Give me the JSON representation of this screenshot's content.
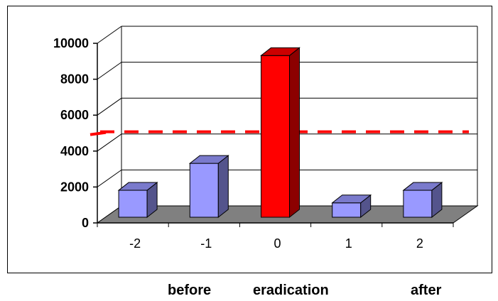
{
  "chart_data": {
    "type": "bar",
    "style": "3d",
    "categories": [
      "-2",
      "-1",
      "0",
      "1",
      "2"
    ],
    "values": [
      1500,
      3000,
      9000,
      800,
      1500
    ],
    "highlight_index": 2,
    "ylim": [
      0,
      10000
    ],
    "yticks": [
      "0",
      "2000",
      "4000",
      "6000",
      "8000",
      "10000"
    ],
    "ytick_values": [
      0,
      2000,
      4000,
      6000,
      8000,
      10000
    ],
    "grid": true,
    "threshold": 4600,
    "colors": {
      "bar": "#9999ff",
      "highlight": "#ff0000",
      "threshold_line": "#ff0000",
      "floor": "#808080"
    }
  },
  "labels": {
    "before": "before",
    "eradication": "eradication",
    "after": "after"
  }
}
